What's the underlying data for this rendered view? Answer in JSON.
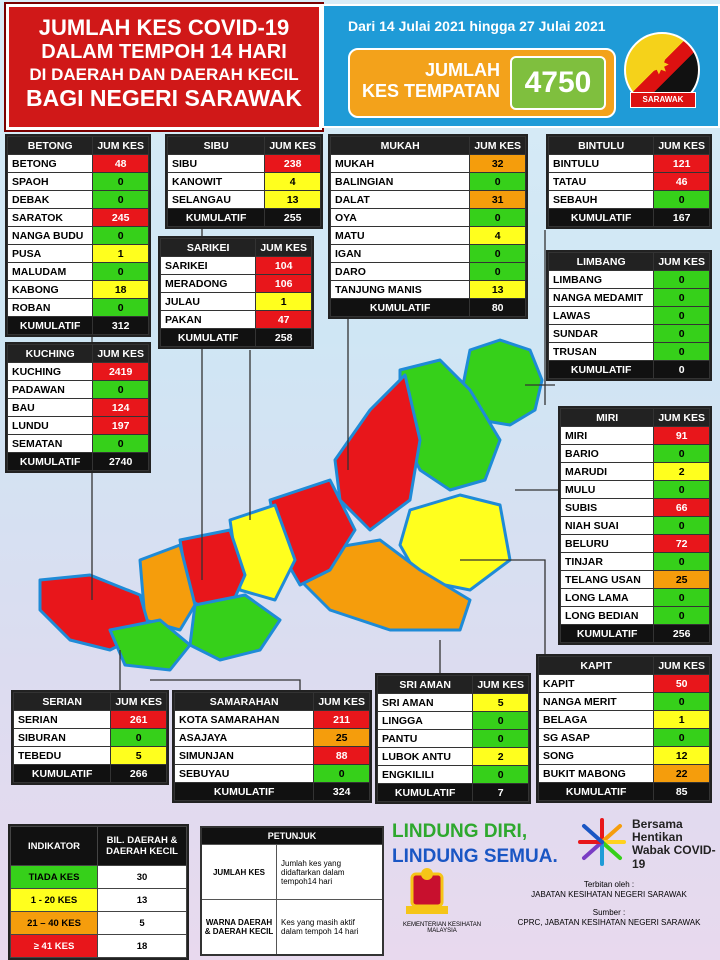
{
  "header": {
    "line1": "JUMLAH KES COVID-19",
    "line2": "DALAM TEMPOH 14 HARI",
    "line3": "DI DAERAH DAN DAERAH KECIL",
    "line4": "BAGI NEGERI SARAWAK",
    "range": "Dari 14 Julai 2021 hingga 27 Julai 2021",
    "total_label_1": "JUMLAH",
    "total_label_2": "KES TEMPATAN",
    "total_value": "4750",
    "flag_text": "SARAWAK"
  },
  "col_header": "JUM KES",
  "total_label": "KUMULATIF",
  "colors": {
    "red": "#e8161b",
    "yellow": "#ffff1e",
    "orange": "#f59d0c",
    "green": "#36d01a"
  },
  "divisions": {
    "betong": {
      "name": "BETONG",
      "rows": [
        [
          "BETONG",
          "48",
          "r"
        ],
        [
          "SPAOH",
          "0",
          "g"
        ],
        [
          "DEBAK",
          "0",
          "g"
        ],
        [
          "SARATOK",
          "245",
          "r"
        ],
        [
          "NANGA BUDU",
          "0",
          "g"
        ],
        [
          "PUSA",
          "1",
          "y"
        ],
        [
          "MALUDAM",
          "0",
          "g"
        ],
        [
          "KABONG",
          "18",
          "y"
        ],
        [
          "ROBAN",
          "0",
          "g"
        ]
      ],
      "total": "312"
    },
    "sibu": {
      "name": "SIBU",
      "rows": [
        [
          "SIBU",
          "238",
          "r"
        ],
        [
          "KANOWIT",
          "4",
          "y"
        ],
        [
          "SELANGAU",
          "13",
          "y"
        ]
      ],
      "total": "255"
    },
    "mukah": {
      "name": "MUKAH",
      "rows": [
        [
          "MUKAH",
          "32",
          "o"
        ],
        [
          "BALINGIAN",
          "0",
          "g"
        ],
        [
          "DALAT",
          "31",
          "o"
        ],
        [
          "OYA",
          "0",
          "g"
        ],
        [
          "MATU",
          "4",
          "y"
        ],
        [
          "IGAN",
          "0",
          "g"
        ],
        [
          "DARO",
          "0",
          "g"
        ],
        [
          "TANJUNG MANIS",
          "13",
          "y"
        ]
      ],
      "total": "80"
    },
    "bintulu": {
      "name": "BINTULU",
      "rows": [
        [
          "BINTULU",
          "121",
          "r"
        ],
        [
          "TATAU",
          "46",
          "r"
        ],
        [
          "SEBAUH",
          "0",
          "g"
        ]
      ],
      "total": "167"
    },
    "sarikei": {
      "name": "SARIKEI",
      "rows": [
        [
          "SARIKEI",
          "104",
          "r"
        ],
        [
          "MERADONG",
          "106",
          "r"
        ],
        [
          "JULAU",
          "1",
          "y"
        ],
        [
          "PAKAN",
          "47",
          "r"
        ]
      ],
      "total": "258"
    },
    "limbang": {
      "name": "LIMBANG",
      "rows": [
        [
          "LIMBANG",
          "0",
          "g"
        ],
        [
          "NANGA MEDAMIT",
          "0",
          "g"
        ],
        [
          "LAWAS",
          "0",
          "g"
        ],
        [
          "SUNDAR",
          "0",
          "g"
        ],
        [
          "TRUSAN",
          "0",
          "g"
        ]
      ],
      "total": "0"
    },
    "kuching": {
      "name": "KUCHING",
      "rows": [
        [
          "KUCHING",
          "2419",
          "r"
        ],
        [
          "PADAWAN",
          "0",
          "g"
        ],
        [
          "BAU",
          "124",
          "r"
        ],
        [
          "LUNDU",
          "197",
          "r"
        ],
        [
          "SEMATAN",
          "0",
          "g"
        ]
      ],
      "total": "2740"
    },
    "miri": {
      "name": "MIRI",
      "rows": [
        [
          "MIRI",
          "91",
          "r"
        ],
        [
          "BARIO",
          "0",
          "g"
        ],
        [
          "MARUDI",
          "2",
          "y"
        ],
        [
          "MULU",
          "0",
          "g"
        ],
        [
          "SUBIS",
          "66",
          "r"
        ],
        [
          "NIAH SUAI",
          "0",
          "g"
        ],
        [
          "BELURU",
          "72",
          "r"
        ],
        [
          "TINJAR",
          "0",
          "g"
        ],
        [
          "TELANG USAN",
          "25",
          "o"
        ],
        [
          "LONG LAMA",
          "0",
          "g"
        ],
        [
          "LONG BEDIAN",
          "0",
          "g"
        ]
      ],
      "total": "256"
    },
    "kapit": {
      "name": "KAPIT",
      "rows": [
        [
          "KAPIT",
          "50",
          "r"
        ],
        [
          "NANGA MERIT",
          "0",
          "g"
        ],
        [
          "BELAGA",
          "1",
          "y"
        ],
        [
          "SG ASAP",
          "0",
          "g"
        ],
        [
          "SONG",
          "12",
          "y"
        ],
        [
          "BUKIT MABONG",
          "22",
          "o"
        ]
      ],
      "total": "85"
    },
    "serian": {
      "name": "SERIAN",
      "rows": [
        [
          "SERIAN",
          "261",
          "r"
        ],
        [
          "SIBURAN",
          "0",
          "g"
        ],
        [
          "TEBEDU",
          "5",
          "y"
        ]
      ],
      "total": "266"
    },
    "samarahan": {
      "name": "SAMARAHAN",
      "rows": [
        [
          "KOTA SAMARAHAN",
          "211",
          "r"
        ],
        [
          "ASAJAYA",
          "25",
          "o"
        ],
        [
          "SIMUNJAN",
          "88",
          "r"
        ],
        [
          "SEBUYAU",
          "0",
          "g"
        ]
      ],
      "total": "324"
    },
    "sriaman": {
      "name": "SRI AMAN",
      "rows": [
        [
          "SRI AMAN",
          "5",
          "y"
        ],
        [
          "LINGGA",
          "0",
          "g"
        ],
        [
          "PANTU",
          "0",
          "g"
        ],
        [
          "LUBOK ANTU",
          "2",
          "y"
        ],
        [
          "ENGKILILI",
          "0",
          "g"
        ]
      ],
      "total": "7"
    }
  },
  "legend": {
    "h1": "INDIKATOR",
    "h2": "BIL. DAERAH & DAERAH KECIL",
    "rows": [
      [
        "TIADA KES",
        "30",
        "g"
      ],
      [
        "1 - 20 KES",
        "13",
        "y"
      ],
      [
        "21 – 40 KES",
        "5",
        "o"
      ],
      [
        "≥ 41 KES",
        "18",
        "r"
      ]
    ]
  },
  "petunjuk": {
    "title": "PETUNJUK",
    "k1": "JUMLAH KES",
    "d1": "Jumlah kes yang didaftarkan dalam tempoh14 hari",
    "k2": "WARNA DAERAH & DAERAH KECIL",
    "d2": "Kes yang masih aktif dalam tempoh 14 hari"
  },
  "slogan": {
    "a": "LINDUNG DIRI,",
    "b": "LINDUNG SEMUA."
  },
  "campaign": "Bersama Hentikan Wabak COVID-19",
  "kkm": "KEMENTERIAN KESIHATAN MALAYSIA",
  "credit": {
    "l1": "Terbitan oleh :",
    "l2": "JABATAN KESIHATAN NEGERI SARAWAK",
    "l3": "Sumber :",
    "l4": "CPRC, JABATAN KESIHATAN NEGERI SARAWAK"
  }
}
